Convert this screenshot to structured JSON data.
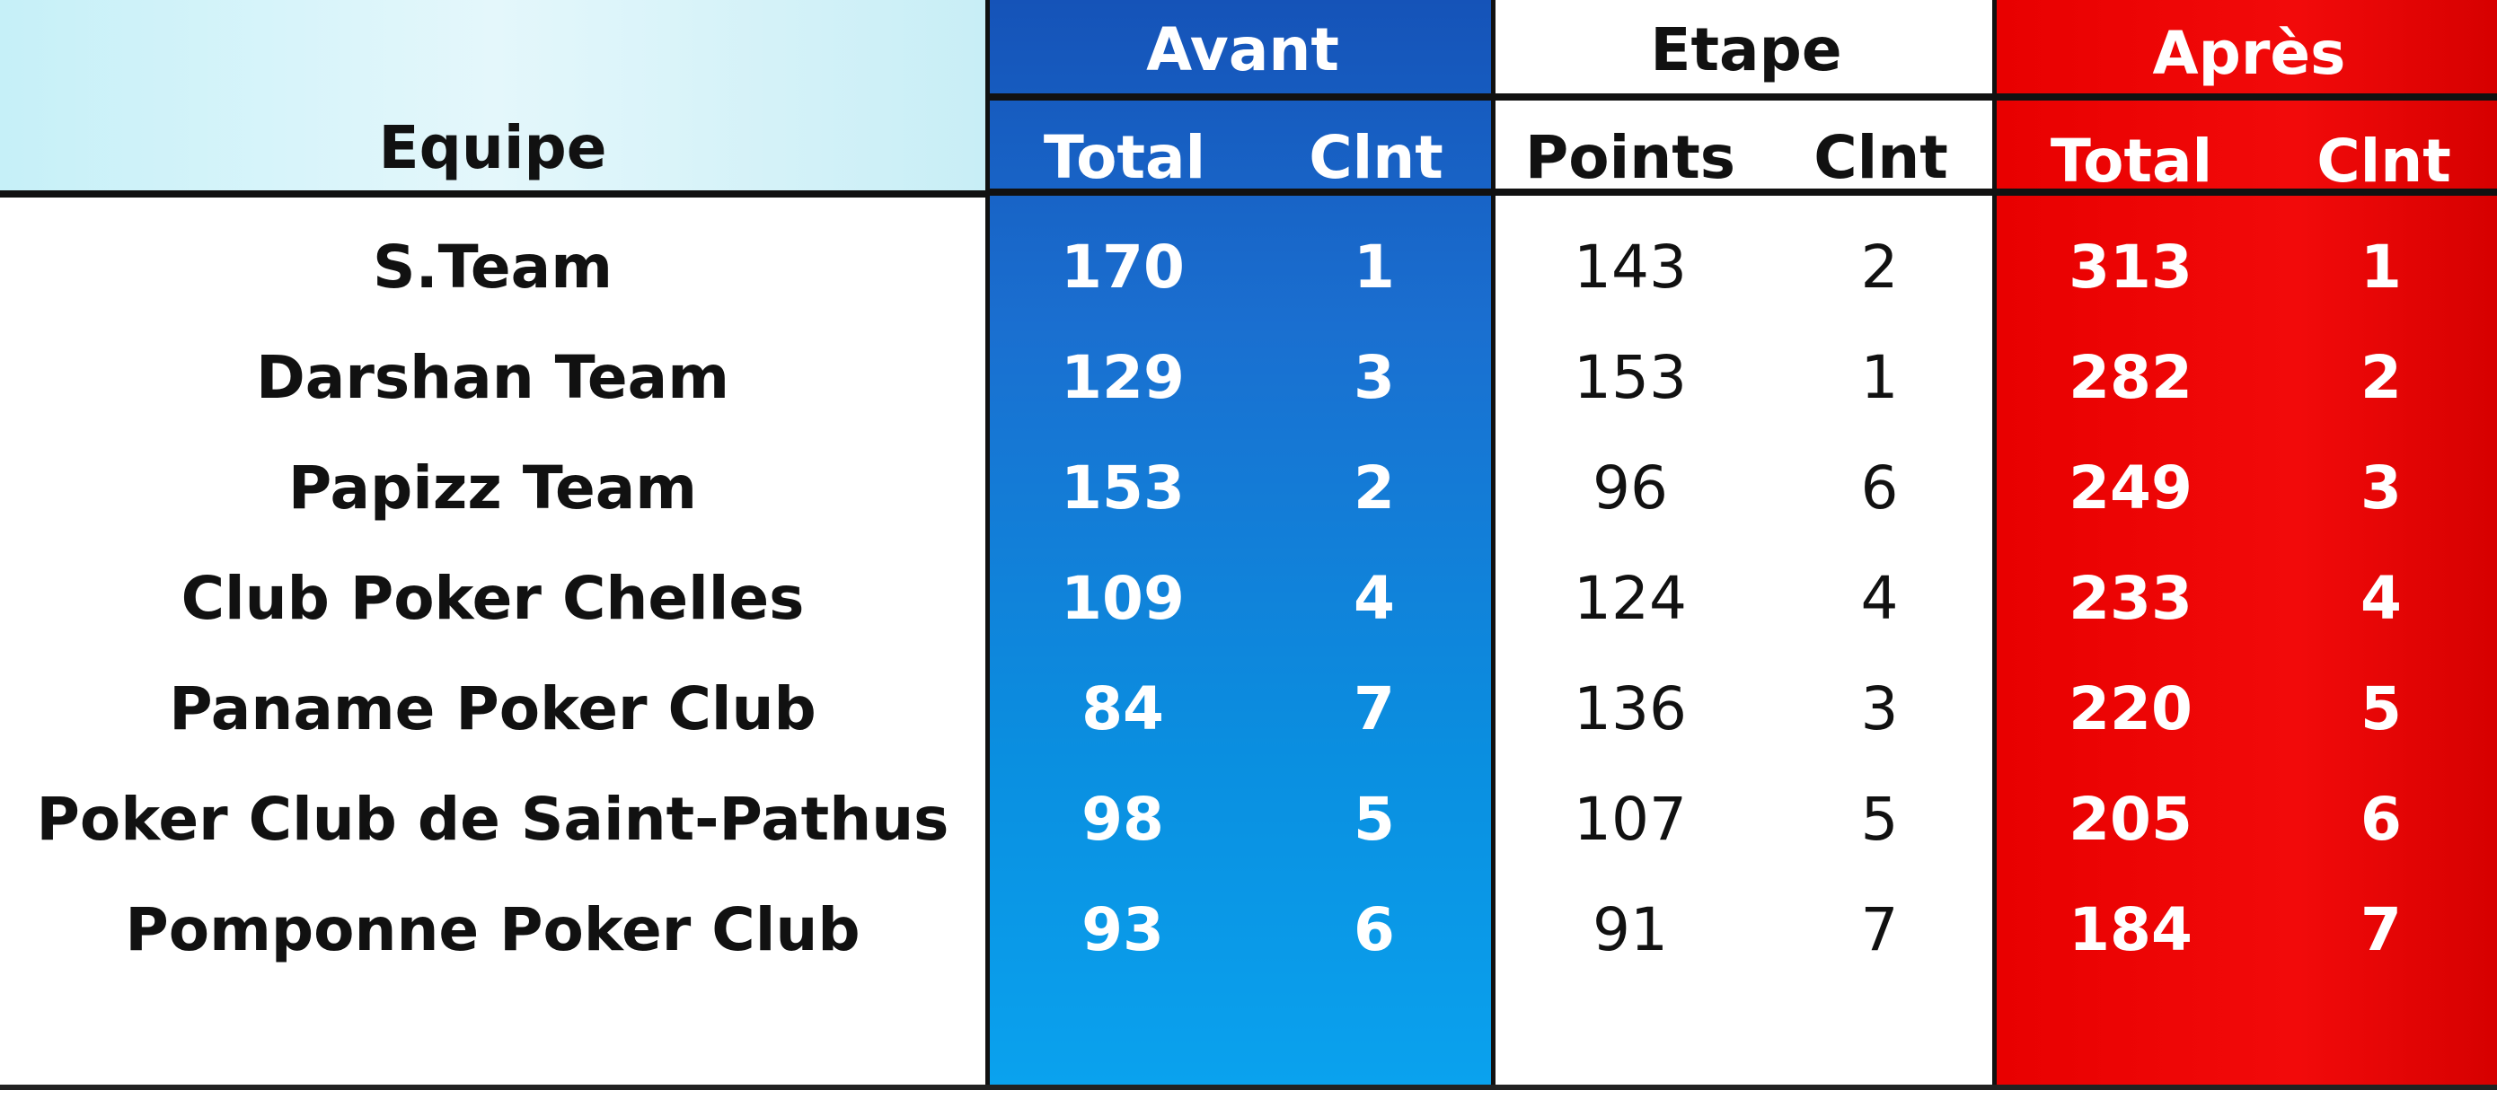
{
  "header": {
    "team": "Equipe",
    "groups": [
      {
        "label": "Avant",
        "sub": [
          "Total",
          "Clnt"
        ]
      },
      {
        "label": "Etape",
        "sub": [
          "Points",
          "Clnt"
        ]
      },
      {
        "label": "Après",
        "sub": [
          "Total",
          "Clnt"
        ]
      }
    ]
  },
  "colors": {
    "avant": "#1a6fd0",
    "etape": "#ffffff",
    "apres": "#e80000"
  },
  "rows": [
    {
      "team": "S.Team",
      "avant_total": "170",
      "avant_clnt": "1",
      "etape_points": "143",
      "etape_clnt": "2",
      "apres_total": "313",
      "apres_clnt": "1"
    },
    {
      "team": "Darshan Team",
      "avant_total": "129",
      "avant_clnt": "3",
      "etape_points": "153",
      "etape_clnt": "1",
      "apres_total": "282",
      "apres_clnt": "2"
    },
    {
      "team": "Papizz Team",
      "avant_total": "153",
      "avant_clnt": "2",
      "etape_points": "96",
      "etape_clnt": "6",
      "apres_total": "249",
      "apres_clnt": "3"
    },
    {
      "team": "Club Poker Chelles",
      "avant_total": "109",
      "avant_clnt": "4",
      "etape_points": "124",
      "etape_clnt": "4",
      "apres_total": "233",
      "apres_clnt": "4"
    },
    {
      "team": "Paname Poker Club",
      "avant_total": "84",
      "avant_clnt": "7",
      "etape_points": "136",
      "etape_clnt": "3",
      "apres_total": "220",
      "apres_clnt": "5"
    },
    {
      "team": "Poker Club de Saint-Pathus",
      "avant_total": "98",
      "avant_clnt": "5",
      "etape_points": "107",
      "etape_clnt": "5",
      "apres_total": "205",
      "apres_clnt": "6"
    },
    {
      "team": "Pomponne Poker Club",
      "avant_total": "93",
      "avant_clnt": "6",
      "etape_points": "91",
      "etape_clnt": "7",
      "apres_total": "184",
      "apres_clnt": "7"
    }
  ]
}
